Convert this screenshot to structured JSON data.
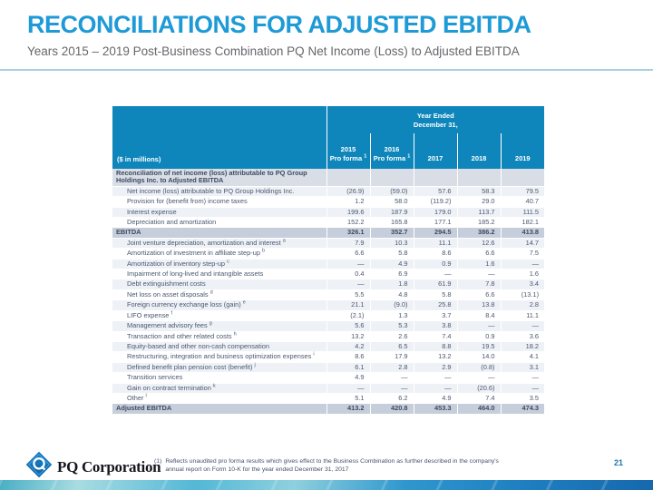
{
  "slide": {
    "title": "RECONCILIATIONS FOR ADJUSTED EBITDA",
    "subtitle": "Years 2015 – 2019 Post-Business Combination PQ Net Income (Loss) to Adjusted EBITDA",
    "page_number": "21"
  },
  "colors": {
    "title_blue": "#1E9AD6",
    "table_header_blue": "#0F86BB",
    "section_row_bg": "#D8DDE6",
    "subtotal_row_bg": "#C6CEDB",
    "stripe_light": "#EEF1F6",
    "divider_blue": "#A6CFE0"
  },
  "table": {
    "units_label": "($ in millions)",
    "col_group_header_line1": "Year Ended",
    "col_group_header_line2": "December 31,",
    "columns": [
      {
        "line1": "2015",
        "line2": "Pro forma",
        "sup": "1"
      },
      {
        "line1": "2016",
        "line2": "Pro forma",
        "sup": "1"
      },
      {
        "line1": "2017",
        "line2": "",
        "sup": ""
      },
      {
        "line1": "2018",
        "line2": "",
        "sup": ""
      },
      {
        "line1": "2019",
        "line2": "",
        "sup": ""
      }
    ],
    "rows": [
      {
        "type": "section",
        "label": "Reconciliation of net income (loss) attributable to PQ Group Holdings Inc. to Adjusted EBITDA",
        "sup": "",
        "values": [
          "",
          "",
          "",
          "",
          ""
        ]
      },
      {
        "type": "data",
        "label": "Net income (loss) attributable to PQ Group Holdings Inc.",
        "sup": "",
        "values": [
          "(26.9)",
          "(59.0)",
          "57.6",
          "58.3",
          "79.5"
        ]
      },
      {
        "type": "data",
        "label": "Provision for (benefit from) income taxes",
        "sup": "",
        "values": [
          "1.2",
          "58.0",
          "(119.2)",
          "29.0",
          "40.7"
        ]
      },
      {
        "type": "data",
        "label": "Interest expense",
        "sup": "",
        "values": [
          "199.6",
          "187.9",
          "179.0",
          "113.7",
          "111.5"
        ]
      },
      {
        "type": "data",
        "label": "Depreciation and amortization",
        "sup": "",
        "values": [
          "152.2",
          "165.8",
          "177.1",
          "185.2",
          "182.1"
        ]
      },
      {
        "type": "subtotal",
        "label": "EBITDA",
        "sup": "",
        "values": [
          "326.1",
          "352.7",
          "294.5",
          "386.2",
          "413.8"
        ]
      },
      {
        "type": "data",
        "label": "Joint venture depreciation, amortization and interest ",
        "sup": "a",
        "values": [
          "7.9",
          "10.3",
          "11.1",
          "12.6",
          "14.7"
        ]
      },
      {
        "type": "data",
        "label": "Amortization of investment in affiliate step-up ",
        "sup": "b",
        "values": [
          "6.6",
          "5.8",
          "8.6",
          "6.6",
          "7.5"
        ]
      },
      {
        "type": "data",
        "label": "Amortization of inventory step-up ",
        "sup": "c",
        "values": [
          "—",
          "4.9",
          "0.9",
          "1.6",
          "—"
        ]
      },
      {
        "type": "data",
        "label": "Impairment of long-lived and intangible assets",
        "sup": "",
        "values": [
          "0.4",
          "6.9",
          "—",
          "—",
          "1.6"
        ]
      },
      {
        "type": "data",
        "label": "Debt extinguishment costs",
        "sup": "",
        "values": [
          "—",
          "1.8",
          "61.9",
          "7.8",
          "3.4"
        ]
      },
      {
        "type": "data",
        "label": "Net loss on asset disposals ",
        "sup": "d",
        "values": [
          "5.5",
          "4.8",
          "5.8",
          "6.6",
          "(13.1)"
        ]
      },
      {
        "type": "data",
        "label": "Foreign currency exchange loss (gain) ",
        "sup": "e",
        "values": [
          "21.1",
          "(9.0)",
          "25.8",
          "13.8",
          "2.8"
        ]
      },
      {
        "type": "data",
        "label": "LIFO expense ",
        "sup": "f",
        "values": [
          "(2.1)",
          "1.3",
          "3.7",
          "8.4",
          "11.1"
        ]
      },
      {
        "type": "data",
        "label": "Management advisory fees ",
        "sup": "g",
        "values": [
          "5.6",
          "5.3",
          "3.8",
          "—",
          "—"
        ]
      },
      {
        "type": "data",
        "label": "Transaction and other related costs ",
        "sup": "h",
        "values": [
          "13.2",
          "2.6",
          "7.4",
          "0.9",
          "3.6"
        ]
      },
      {
        "type": "data",
        "label": "Equity-based and other non-cash compensation",
        "sup": "",
        "values": [
          "4.2",
          "6.5",
          "8.8",
          "19.5",
          "18.2"
        ]
      },
      {
        "type": "data",
        "label": "Restructuring, integration and business optimization expenses ",
        "sup": "i",
        "values": [
          "8.6",
          "17.9",
          "13.2",
          "14.0",
          "4.1"
        ]
      },
      {
        "type": "data",
        "label": "Defined benefit plan pension cost (benefit) ",
        "sup": "j",
        "values": [
          "6.1",
          "2.8",
          "2.9",
          "(0.8)",
          "3.1"
        ]
      },
      {
        "type": "data",
        "label": "Transition services",
        "sup": "",
        "values": [
          "4.9",
          "—",
          "—",
          "—",
          "—"
        ]
      },
      {
        "type": "data",
        "label": "Gain on contract termination ",
        "sup": "k",
        "values": [
          "—",
          "—",
          "—",
          "(20.6)",
          "—"
        ]
      },
      {
        "type": "data",
        "label": "Other ",
        "sup": "l",
        "values": [
          "5.1",
          "6.2",
          "4.9",
          "7.4",
          "3.5"
        ]
      },
      {
        "type": "subtotal",
        "label": "Adjusted EBITDA",
        "sup": "",
        "values": [
          "413.2",
          "420.8",
          "453.3",
          "464.0",
          "474.3"
        ]
      }
    ]
  },
  "footnote": {
    "marker": "(1)",
    "text": "Reflects unaudited pro forma results which gives effect to the Business Combination as further described in the company's annual report on Form 10-K for the year ended December 31, 2017"
  },
  "footer": {
    "logo_text": "PQ Corporation"
  }
}
